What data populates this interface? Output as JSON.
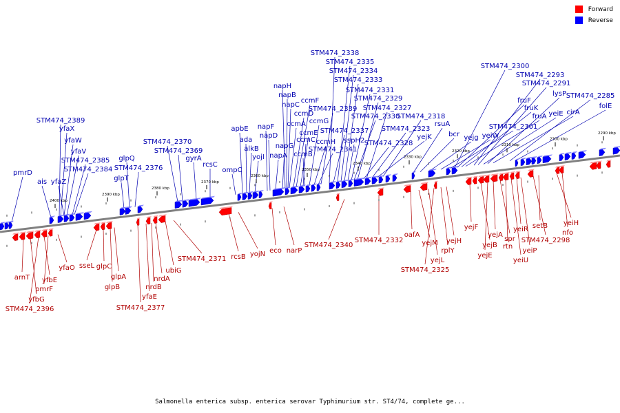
{
  "legend": [
    {
      "label": "Forward",
      "color": "#ff0000"
    },
    {
      "label": "Reverse",
      "color": "#0000ff"
    }
  ],
  "caption": "Salmonella enterica subsp. enterica serovar Typhimurium str. ST4/74, complete ge...",
  "colors": {
    "forward": "#ff0000",
    "forward_label": "#b00000",
    "reverse": "#0000ff",
    "reverse_label": "#0000b0",
    "backbone": "#808080"
  },
  "scale_labels": [
    "2400 kbp",
    "2390 kbp",
    "2380 kbp",
    "2370 kbp",
    "2360 kbp",
    "2350 kbp",
    "2340 kbp",
    "2330 kbp",
    "2320 kbp",
    "2310 kbp",
    "2300 kbp",
    "2290 kbp"
  ],
  "reverse_genes": [
    "pmrD",
    "ais",
    "yfaZ",
    "STM474_2389",
    "yfaX",
    "yfaW",
    "yfaV",
    "STM474_2385",
    "STM474_2384",
    "glpT",
    "glpQ",
    "STM474_2376",
    "STM474_2370",
    "STM474_2369",
    "gyrA",
    "rcsC",
    "ompC",
    "apbE",
    "ada",
    "alkB",
    "yojI",
    "napF",
    "napD",
    "napA",
    "napG",
    "napH",
    "napB",
    "napC",
    "ccmA",
    "ccmD",
    "ccmF",
    "ccmE",
    "ccmC",
    "ccmB",
    "ccmG",
    "ccmH",
    "STM474_2341",
    "STM474_2339",
    "STM474_2338",
    "STM474_2337",
    "STM474_2335",
    "STM474_2334",
    "STM474_2333",
    "sspH2",
    "STM474_2331",
    "STM474_2330",
    "STM474_2329",
    "STM474_2328",
    "STM474_2327",
    "STM474_2323",
    "yejK",
    "STM474_2318",
    "rsuA",
    "bcr",
    "yejg",
    "yeiW",
    "STM474_2301",
    "STM474_2300",
    "fruF",
    "fruK",
    "fruA",
    "STM474_2293",
    "STM474_2291",
    "yeiE",
    "lysP",
    "cirA",
    "STM474_2285",
    "folE"
  ],
  "forward_genes": [
    "arnT",
    "yfbG",
    "STM474_2396",
    "yfbE",
    "pmrF",
    "yfaO",
    "sseL",
    "glpC",
    "glpB",
    "glpA",
    "STM474_2377",
    "yfaE",
    "nrdB",
    "nrdA",
    "ubiG",
    "STM474_2371",
    "rcsB",
    "yojN",
    "eco",
    "narP",
    "STM474_2340",
    "STM474_2332",
    "oafA",
    "yejM",
    "yejL",
    "STM474_2325",
    "rplY",
    "yejH",
    "yejF",
    "yejB",
    "yejE",
    "yejA",
    "spr",
    "rtn",
    "yeiU",
    "yeiR",
    "yeiP",
    "STM474_2298",
    "setB",
    "yeiH",
    "nfo"
  ]
}
